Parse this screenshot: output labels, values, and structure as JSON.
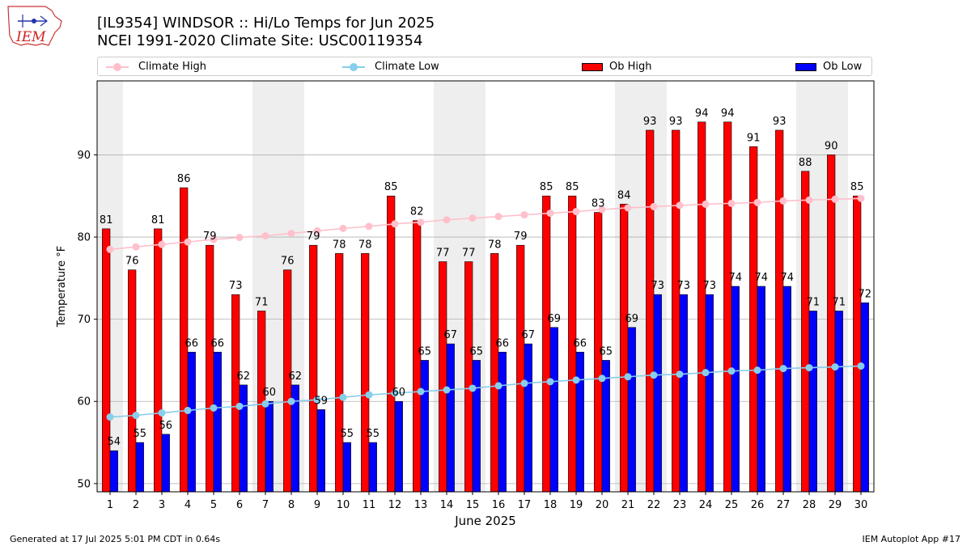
{
  "logo": {
    "text": "IEM"
  },
  "header": {
    "title": "[IL9354] WINDSOR :: Hi/Lo Temps for Jun 2025",
    "subtitle": "NCEI 1991-2020 Climate Site: USC00119354"
  },
  "legend": {
    "climate_high": "Climate High",
    "climate_low": "Climate Low",
    "ob_high": "Ob High",
    "ob_low": "Ob Low"
  },
  "colors": {
    "ob_high": "#ff0000",
    "ob_low": "#0000ff",
    "climate_high": "#ffc0cb",
    "climate_low": "#87ceeb",
    "weekend_band": "#eeeeee",
    "grid": "#b0b0b0"
  },
  "chart_data": {
    "type": "bar",
    "xlabel": "June 2025",
    "ylabel": "Temperature °F",
    "ylim": [
      49,
      99
    ],
    "yticks": [
      50,
      60,
      70,
      80,
      90
    ],
    "grid": "horizontal",
    "legend_position": "top",
    "categories": [
      "1",
      "2",
      "3",
      "4",
      "5",
      "6",
      "7",
      "8",
      "9",
      "10",
      "11",
      "12",
      "13",
      "14",
      "15",
      "16",
      "17",
      "18",
      "19",
      "20",
      "21",
      "22",
      "23",
      "24",
      "25",
      "26",
      "27",
      "28",
      "29",
      "30"
    ],
    "weekend_days": [
      1,
      7,
      8,
      14,
      15,
      21,
      22,
      28,
      29
    ],
    "series": [
      {
        "name": "Ob High",
        "type": "bar",
        "values": [
          81,
          76,
          81,
          86,
          79,
          73,
          71,
          76,
          79,
          78,
          78,
          85,
          82,
          77,
          77,
          78,
          79,
          85,
          85,
          83,
          84,
          93,
          93,
          94,
          94,
          91,
          93,
          88,
          90,
          85
        ]
      },
      {
        "name": "Ob Low",
        "type": "bar",
        "values": [
          54,
          55,
          56,
          66,
          66,
          62,
          60,
          62,
          59,
          55,
          55,
          60,
          65,
          67,
          65,
          66,
          67,
          69,
          66,
          65,
          69,
          73,
          73,
          73,
          74,
          74,
          74,
          71,
          71,
          72
        ]
      },
      {
        "name": "Climate High",
        "type": "line",
        "values": [
          78.5,
          78.8,
          79.1,
          79.4,
          79.7,
          79.95,
          80.15,
          80.45,
          80.75,
          81.05,
          81.3,
          81.6,
          81.8,
          82.1,
          82.3,
          82.5,
          82.7,
          82.9,
          83.1,
          83.35,
          83.55,
          83.7,
          83.85,
          84.0,
          84.1,
          84.2,
          84.4,
          84.5,
          84.6,
          84.7
        ]
      },
      {
        "name": "Climate Low",
        "type": "line",
        "values": [
          58.1,
          58.3,
          58.6,
          58.9,
          59.2,
          59.4,
          59.7,
          60.0,
          60.2,
          60.5,
          60.8,
          61.0,
          61.2,
          61.4,
          61.6,
          61.9,
          62.2,
          62.4,
          62.6,
          62.8,
          63.0,
          63.2,
          63.3,
          63.5,
          63.7,
          63.8,
          64.0,
          64.1,
          64.2,
          64.3
        ]
      }
    ]
  },
  "footer": {
    "generated": "Generated at 17 Jul 2025 5:01 PM CDT in 0.64s",
    "app": "IEM Autoplot App #17"
  }
}
